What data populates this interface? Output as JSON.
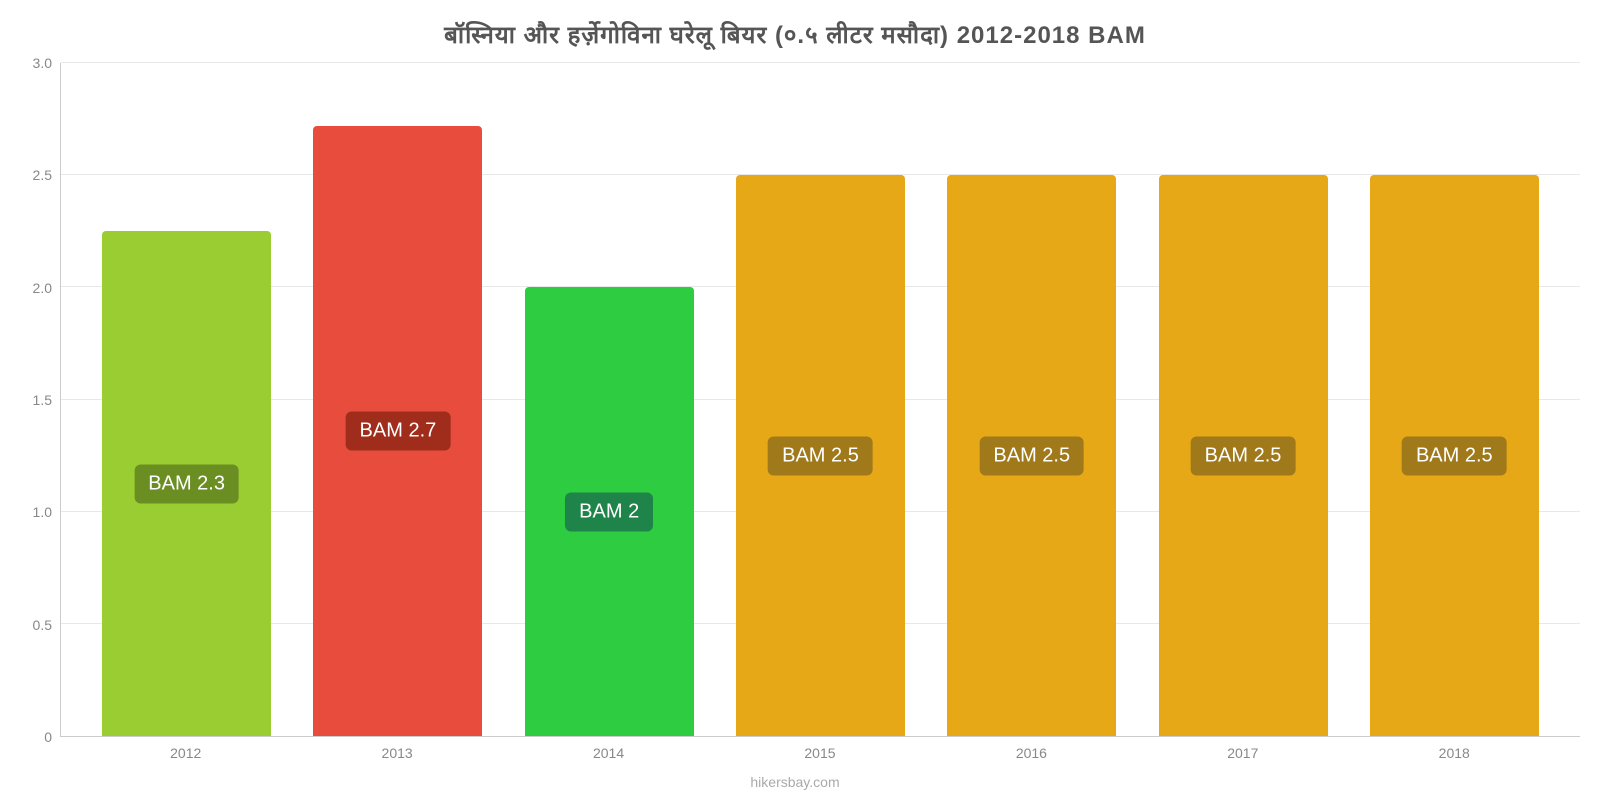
{
  "chart": {
    "type": "bar",
    "title": "बॉस्निया और हर्ज़ेगोविना घरेलू बियर (०.५ लीटर मसौदा) 2012-2018 BAM",
    "title_fontsize": 24,
    "title_color": "#555555",
    "background_color": "#ffffff",
    "grid_color": "#e8e8e8",
    "axis_color": "#cccccc",
    "tick_color": "#888888",
    "tick_fontsize": 14,
    "ylim": [
      0,
      3.0
    ],
    "yticks": [
      0,
      0.5,
      1.0,
      1.5,
      2.0,
      2.5,
      3.0
    ],
    "ytick_labels": [
      "0",
      "0.5",
      "1.0",
      "1.5",
      "2.0",
      "2.5",
      "3.0"
    ],
    "categories": [
      "2012",
      "2013",
      "2014",
      "2015",
      "2016",
      "2017",
      "2018"
    ],
    "values": [
      2.25,
      2.72,
      2.0,
      2.5,
      2.5,
      2.5,
      2.5
    ],
    "value_labels": [
      "BAM 2.3",
      "BAM 2.7",
      "BAM 2",
      "BAM 2.5",
      "BAM 2.5",
      "BAM 2.5",
      "BAM 2.5"
    ],
    "bar_colors": [
      "#9acd32",
      "#e74c3c",
      "#2ecc40",
      "#e6a817",
      "#e6a817",
      "#e6a817",
      "#e6a817"
    ],
    "label_bg_colors": [
      "#6b8e23",
      "#a02c1c",
      "#1e8449",
      "#a0791a",
      "#a0791a",
      "#a0791a",
      "#a0791a"
    ],
    "bar_width": 0.8,
    "attribution": "hikersbay.com",
    "attribution_color": "#aaaaaa"
  }
}
